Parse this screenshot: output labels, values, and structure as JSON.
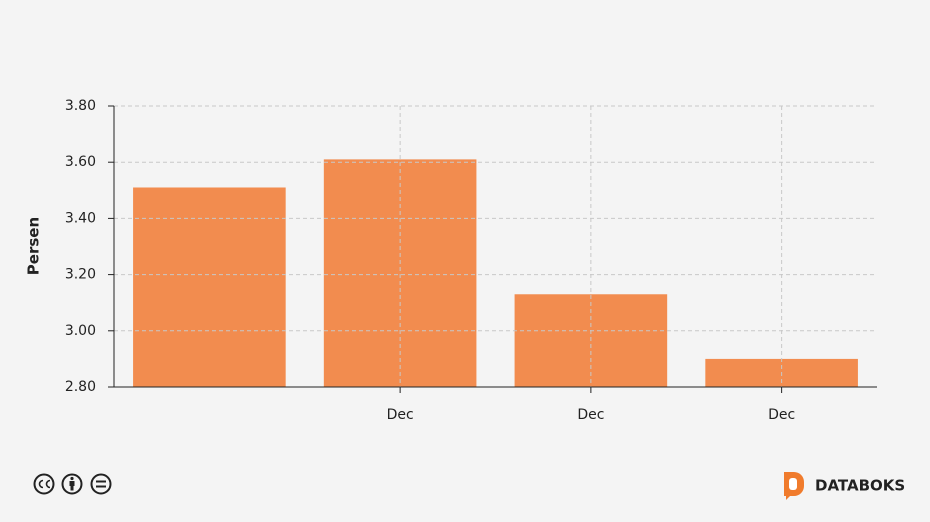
{
  "chart_data": {
    "type": "bar",
    "y_label": "Persen",
    "categories": [
      null,
      "Dec",
      "Dec",
      "Dec"
    ],
    "values": [
      3.51,
      3.61,
      3.13,
      2.9
    ],
    "color": "#f28c4f",
    "ylim": [
      2.8,
      3.8
    ],
    "yticks": [
      {
        "value": 2.8,
        "label": "2.80"
      },
      {
        "value": 3.0,
        "label": "3.00"
      },
      {
        "value": 3.2,
        "label": "3.20"
      },
      {
        "value": 3.4,
        "label": "3.40"
      },
      {
        "value": 3.6,
        "label": "3.60"
      },
      {
        "value": 3.8,
        "label": "3.80"
      }
    ],
    "grid": true
  },
  "footer": {
    "brand": "DATABOKS"
  }
}
